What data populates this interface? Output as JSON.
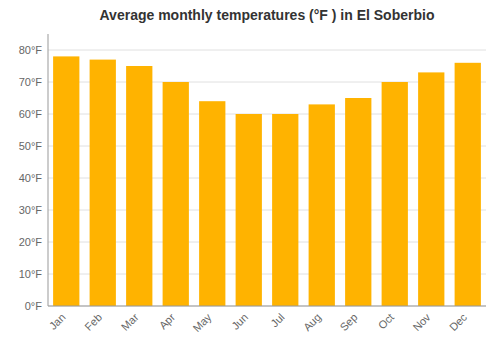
{
  "chart_data": {
    "type": "bar",
    "title": "Average monthly temperatures (°F ) in El Soberbio",
    "categories": [
      "Jan",
      "Feb",
      "Mar",
      "Apr",
      "May",
      "Jun",
      "Jul",
      "Aug",
      "Sep",
      "Oct",
      "Nov",
      "Dec"
    ],
    "values": [
      78,
      77,
      75,
      70,
      64,
      60,
      60,
      63,
      65,
      70,
      73,
      76
    ],
    "color": "#FFB300",
    "ylim": [
      0,
      85
    ],
    "yticks": [
      {
        "value": 0,
        "label": "0°F"
      },
      {
        "value": 10,
        "label": "10°F"
      },
      {
        "value": 20,
        "label": "20°F"
      },
      {
        "value": 30,
        "label": "30°F"
      },
      {
        "value": 40,
        "label": "40°F"
      },
      {
        "value": 50,
        "label": "50°F"
      },
      {
        "value": 60,
        "label": "60°F"
      },
      {
        "value": 70,
        "label": "70°F"
      },
      {
        "value": 80,
        "label": "80°F"
      }
    ],
    "grid": true
  }
}
